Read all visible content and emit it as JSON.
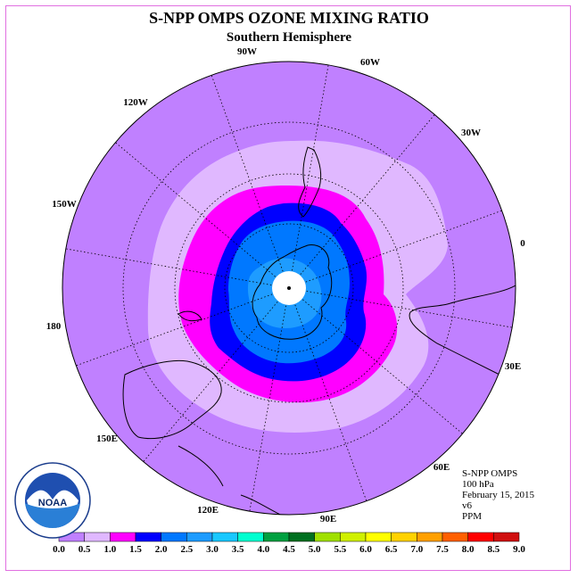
{
  "title": "S-NPP OMPS OZONE MIXING RATIO",
  "subtitle": "Southern Hemisphere",
  "longitude_labels": [
    {
      "label": "90W"
    },
    {
      "label": "60W"
    },
    {
      "label": "30W"
    },
    {
      "label": "0"
    },
    {
      "label": "30E"
    },
    {
      "label": "60E"
    },
    {
      "label": "90E"
    },
    {
      "label": "120E"
    },
    {
      "label": "150E"
    },
    {
      "label": "180"
    },
    {
      "label": "150W"
    },
    {
      "label": "120W"
    }
  ],
  "info": {
    "instrument": "S-NPP OMPS",
    "level": "100 hPa",
    "date": "February 15, 2015",
    "version": "v6",
    "units": "PPM"
  },
  "logo": {
    "text": "NOAA",
    "ring_text": "NATIONAL OCEANIC AND ATMOSPHERIC ADMINISTRATION · U.S. DEPARTMENT OF COMMERCE"
  },
  "colorbar": {
    "ticks": [
      "0.0",
      "0.5",
      "1.0",
      "1.5",
      "2.0",
      "2.5",
      "3.0",
      "3.5",
      "4.0",
      "4.5",
      "5.0",
      "5.5",
      "6.0",
      "6.5",
      "7.0",
      "7.5",
      "8.0",
      "8.5",
      "9.0"
    ],
    "colors": [
      "#c080ff",
      "#e0b8ff",
      "#ff00ff",
      "#0000ff",
      "#0078ff",
      "#1e9cff",
      "#19c8ff",
      "#00ffd0",
      "#00a040",
      "#007020",
      "#a0e000",
      "#d0f000",
      "#ffff00",
      "#ffd200",
      "#ffa000",
      "#ff6000",
      "#ff0000",
      "#d01010",
      "#8b5a3c"
    ]
  },
  "colors": {
    "frame": "#e070e0",
    "background_field": "#c080ff"
  }
}
